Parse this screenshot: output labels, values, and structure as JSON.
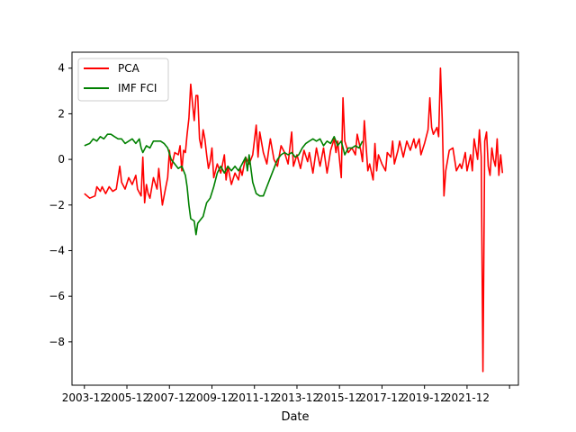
{
  "chart_data": {
    "type": "line",
    "xlabel": "Date",
    "ylabel": "",
    "title": "",
    "x_tick_labels": [
      "2003-12",
      "2005-12",
      "2007-12",
      "2009-12",
      "2011-12",
      "2013-12",
      "2015-12",
      "2017-12",
      "2019-12",
      "2021-12",
      ""
    ],
    "x_tick_positions": [
      "2003-12",
      "2005-12",
      "2007-12",
      "2009-12",
      "2011-12",
      "2013-12",
      "2015-12",
      "2017-12",
      "2019-12",
      "2021-12",
      "2023-12"
    ],
    "xlim": [
      "2003-05",
      "2024-05"
    ],
    "y_ticks": [
      -8,
      -6,
      -4,
      -2,
      0,
      2,
      4
    ],
    "y_tick_labels": [
      "−8",
      "−6",
      "−4",
      "−2",
      "0",
      "2",
      "4"
    ],
    "ylim": [
      -9.9,
      4.7
    ],
    "grid": false,
    "legend_position": "top-left",
    "series": [
      {
        "name": "PCA",
        "color": "#ff0000",
        "points": [
          [
            "2003-12",
            -1.5
          ],
          [
            "2004-03",
            -1.7
          ],
          [
            "2004-06",
            -1.6
          ],
          [
            "2004-07",
            -1.2
          ],
          [
            "2004-09",
            -1.4
          ],
          [
            "2004-10",
            -1.2
          ],
          [
            "2004-12",
            -1.5
          ],
          [
            "2005-02",
            -1.2
          ],
          [
            "2005-04",
            -1.4
          ],
          [
            "2005-06",
            -1.3
          ],
          [
            "2005-08",
            -0.3
          ],
          [
            "2005-09",
            -1.0
          ],
          [
            "2005-11",
            -1.3
          ],
          [
            "2006-01",
            -0.8
          ],
          [
            "2006-03",
            -1.1
          ],
          [
            "2006-05",
            -0.7
          ],
          [
            "2006-06",
            -1.3
          ],
          [
            "2006-08",
            -1.6
          ],
          [
            "2006-09",
            0.1
          ],
          [
            "2006-10",
            -1.9
          ],
          [
            "2006-11",
            -1.1
          ],
          [
            "2006-12",
            -1.5
          ],
          [
            "2007-01",
            -1.7
          ],
          [
            "2007-03",
            -0.8
          ],
          [
            "2007-05",
            -1.3
          ],
          [
            "2007-06",
            -0.4
          ],
          [
            "2007-08",
            -2.0
          ],
          [
            "2007-10",
            -1.2
          ],
          [
            "2007-11",
            -0.8
          ],
          [
            "2007-12",
            0.4
          ],
          [
            "2008-01",
            -0.4
          ],
          [
            "2008-03",
            0.3
          ],
          [
            "2008-05",
            0.2
          ],
          [
            "2008-06",
            0.6
          ],
          [
            "2008-07",
            -0.5
          ],
          [
            "2008-08",
            0.4
          ],
          [
            "2008-09",
            0.3
          ],
          [
            "2008-10",
            1.1
          ],
          [
            "2008-11",
            1.8
          ],
          [
            "2008-12",
            3.3
          ],
          [
            "2009-01",
            2.5
          ],
          [
            "2009-02",
            1.7
          ],
          [
            "2009-03",
            2.8
          ],
          [
            "2009-04",
            2.8
          ],
          [
            "2009-05",
            0.9
          ],
          [
            "2009-06",
            0.5
          ],
          [
            "2009-07",
            1.3
          ],
          [
            "2009-08",
            0.9
          ],
          [
            "2009-09",
            0.2
          ],
          [
            "2009-10",
            -0.4
          ],
          [
            "2009-11",
            -0.1
          ],
          [
            "2009-12",
            0.5
          ],
          [
            "2010-01",
            -0.8
          ],
          [
            "2010-03",
            -0.2
          ],
          [
            "2010-05",
            -0.6
          ],
          [
            "2010-07",
            0.2
          ],
          [
            "2010-08",
            -0.9
          ],
          [
            "2010-09",
            -0.3
          ],
          [
            "2010-11",
            -1.1
          ],
          [
            "2011-01",
            -0.6
          ],
          [
            "2011-03",
            -0.9
          ],
          [
            "2011-04",
            -0.4
          ],
          [
            "2011-05",
            -0.7
          ],
          [
            "2011-07",
            0.1
          ],
          [
            "2011-09",
            -0.2
          ],
          [
            "2011-11",
            0.2
          ],
          [
            "2012-01",
            1.5
          ],
          [
            "2012-02",
            0.1
          ],
          [
            "2012-03",
            1.2
          ],
          [
            "2012-05",
            0.3
          ],
          [
            "2012-07",
            -0.2
          ],
          [
            "2012-08",
            0.4
          ],
          [
            "2012-09",
            0.9
          ],
          [
            "2012-11",
            0.0
          ],
          [
            "2013-01",
            -0.3
          ],
          [
            "2013-03",
            0.6
          ],
          [
            "2013-05",
            0.3
          ],
          [
            "2013-07",
            -0.2
          ],
          [
            "2013-09",
            1.2
          ],
          [
            "2013-10",
            -0.3
          ],
          [
            "2013-12",
            0.2
          ],
          [
            "2014-02",
            -0.4
          ],
          [
            "2014-04",
            0.4
          ],
          [
            "2014-06",
            -0.1
          ],
          [
            "2014-07",
            0.3
          ],
          [
            "2014-09",
            -0.6
          ],
          [
            "2014-11",
            0.5
          ],
          [
            "2015-01",
            -0.3
          ],
          [
            "2015-03",
            0.5
          ],
          [
            "2015-05",
            -0.6
          ],
          [
            "2015-07",
            0.4
          ],
          [
            "2015-09",
            0.9
          ],
          [
            "2015-10",
            0.3
          ],
          [
            "2015-11",
            0.8
          ],
          [
            "2016-01",
            -0.8
          ],
          [
            "2016-02",
            2.7
          ],
          [
            "2016-03",
            0.8
          ],
          [
            "2016-05",
            0.3
          ],
          [
            "2016-07",
            0.5
          ],
          [
            "2016-09",
            0.2
          ],
          [
            "2016-10",
            1.1
          ],
          [
            "2016-12",
            0.4
          ],
          [
            "2017-01",
            -0.1
          ],
          [
            "2017-02",
            1.7
          ],
          [
            "2017-04",
            -0.5
          ],
          [
            "2017-05",
            -0.2
          ],
          [
            "2017-07",
            -0.9
          ],
          [
            "2017-08",
            0.7
          ],
          [
            "2017-09",
            -0.5
          ],
          [
            "2017-10",
            0.2
          ],
          [
            "2017-12",
            -0.2
          ],
          [
            "2018-02",
            -0.5
          ],
          [
            "2018-03",
            0.3
          ],
          [
            "2018-05",
            0.1
          ],
          [
            "2018-06",
            0.8
          ],
          [
            "2018-07",
            -0.2
          ],
          [
            "2018-09",
            0.4
          ],
          [
            "2018-10",
            0.8
          ],
          [
            "2018-12",
            0.1
          ],
          [
            "2019-02",
            0.8
          ],
          [
            "2019-04",
            0.4
          ],
          [
            "2019-06",
            0.9
          ],
          [
            "2019-07",
            0.5
          ],
          [
            "2019-09",
            0.9
          ],
          [
            "2019-10",
            0.2
          ],
          [
            "2019-12",
            0.7
          ],
          [
            "2020-02",
            1.3
          ],
          [
            "2020-03",
            2.7
          ],
          [
            "2020-04",
            1.4
          ],
          [
            "2020-05",
            1.1
          ],
          [
            "2020-07",
            1.4
          ],
          [
            "2020-08",
            1.0
          ],
          [
            "2020-09",
            4.0
          ],
          [
            "2020-10",
            1.7
          ],
          [
            "2020-11",
            -1.6
          ],
          [
            "2020-12",
            -0.5
          ],
          [
            "2021-02",
            0.4
          ],
          [
            "2021-04",
            0.5
          ],
          [
            "2021-06",
            -0.5
          ],
          [
            "2021-08",
            -0.2
          ],
          [
            "2021-09",
            -0.4
          ],
          [
            "2021-11",
            0.3
          ],
          [
            "2021-12",
            -0.5
          ],
          [
            "2022-02",
            0.2
          ],
          [
            "2022-03",
            -0.5
          ],
          [
            "2022-04",
            0.9
          ],
          [
            "2022-06",
            0.0
          ],
          [
            "2022-07",
            1.3
          ],
          [
            "2022-08",
            0.1
          ],
          [
            "2022-09",
            -9.3
          ],
          [
            "2022-10",
            0.8
          ],
          [
            "2022-11",
            1.2
          ],
          [
            "2022-12",
            -0.3
          ],
          [
            "2023-01",
            -0.7
          ],
          [
            "2023-02",
            0.5
          ],
          [
            "2023-03",
            0.0
          ],
          [
            "2023-04",
            -0.3
          ],
          [
            "2023-05",
            0.9
          ],
          [
            "2023-06",
            -0.7
          ],
          [
            "2023-07",
            0.2
          ],
          [
            "2023-08",
            -0.6
          ]
        ]
      },
      {
        "name": "IMF FCI",
        "color": "#008000",
        "points": [
          [
            "2003-12",
            0.6
          ],
          [
            "2004-03",
            0.7
          ],
          [
            "2004-05",
            0.9
          ],
          [
            "2004-07",
            0.8
          ],
          [
            "2004-09",
            1.0
          ],
          [
            "2004-11",
            0.9
          ],
          [
            "2005-01",
            1.1
          ],
          [
            "2005-03",
            1.1
          ],
          [
            "2005-05",
            1.0
          ],
          [
            "2005-07",
            0.9
          ],
          [
            "2005-09",
            0.9
          ],
          [
            "2005-11",
            0.7
          ],
          [
            "2006-01",
            0.8
          ],
          [
            "2006-03",
            0.9
          ],
          [
            "2006-05",
            0.7
          ],
          [
            "2006-07",
            0.9
          ],
          [
            "2006-08",
            0.5
          ],
          [
            "2006-09",
            0.3
          ],
          [
            "2006-11",
            0.6
          ],
          [
            "2007-01",
            0.5
          ],
          [
            "2007-03",
            0.8
          ],
          [
            "2007-05",
            0.8
          ],
          [
            "2007-07",
            0.8
          ],
          [
            "2007-09",
            0.7
          ],
          [
            "2007-11",
            0.5
          ],
          [
            "2008-01",
            0.0
          ],
          [
            "2008-03",
            -0.2
          ],
          [
            "2008-05",
            -0.4
          ],
          [
            "2008-07",
            -0.3
          ],
          [
            "2008-09",
            -0.7
          ],
          [
            "2008-10",
            -1.2
          ],
          [
            "2008-11",
            -2.0
          ],
          [
            "2008-12",
            -2.6
          ],
          [
            "2009-02",
            -2.7
          ],
          [
            "2009-03",
            -3.3
          ],
          [
            "2009-04",
            -2.8
          ],
          [
            "2009-05",
            -2.7
          ],
          [
            "2009-07",
            -2.5
          ],
          [
            "2009-08",
            -2.2
          ],
          [
            "2009-09",
            -1.9
          ],
          [
            "2009-11",
            -1.7
          ],
          [
            "2010-01",
            -1.2
          ],
          [
            "2010-03",
            -0.6
          ],
          [
            "2010-05",
            -0.3
          ],
          [
            "2010-07",
            -0.6
          ],
          [
            "2010-09",
            -0.3
          ],
          [
            "2010-11",
            -0.5
          ],
          [
            "2011-01",
            -0.3
          ],
          [
            "2011-03",
            -0.5
          ],
          [
            "2011-05",
            -0.2
          ],
          [
            "2011-07",
            0.1
          ],
          [
            "2011-08",
            -0.5
          ],
          [
            "2011-09",
            0.2
          ],
          [
            "2011-11",
            -1.0
          ],
          [
            "2012-01",
            -1.5
          ],
          [
            "2012-03",
            -1.6
          ],
          [
            "2012-05",
            -1.6
          ],
          [
            "2012-07",
            -1.2
          ],
          [
            "2012-09",
            -0.8
          ],
          [
            "2012-11",
            -0.4
          ],
          [
            "2013-01",
            0.0
          ],
          [
            "2013-03",
            0.2
          ],
          [
            "2013-05",
            0.3
          ],
          [
            "2013-07",
            0.2
          ],
          [
            "2013-09",
            0.3
          ],
          [
            "2013-11",
            0.1
          ],
          [
            "2014-01",
            0.2
          ],
          [
            "2014-03",
            0.5
          ],
          [
            "2014-05",
            0.7
          ],
          [
            "2014-07",
            0.8
          ],
          [
            "2014-09",
            0.9
          ],
          [
            "2014-11",
            0.8
          ],
          [
            "2015-01",
            0.9
          ],
          [
            "2015-03",
            0.6
          ],
          [
            "2015-05",
            0.8
          ],
          [
            "2015-07",
            0.7
          ],
          [
            "2015-09",
            1.0
          ],
          [
            "2015-11",
            0.6
          ],
          [
            "2016-01",
            0.8
          ],
          [
            "2016-03",
            0.2
          ],
          [
            "2016-05",
            0.5
          ],
          [
            "2016-07",
            0.5
          ],
          [
            "2016-09",
            0.6
          ],
          [
            "2016-11",
            0.5
          ],
          [
            "2017-01",
            0.8
          ]
        ]
      }
    ]
  }
}
